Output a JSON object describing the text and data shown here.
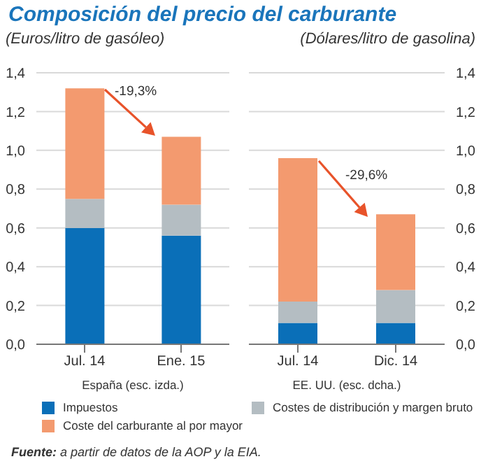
{
  "chart_data": [
    {
      "type": "bar",
      "title": "Composición del precio del carburante",
      "ylabel": "(Euros/litro de gasóleo)",
      "xlabel": "España (esc. izda.)",
      "categories": [
        "Jul. 14",
        "Ene. 15"
      ],
      "stacked": true,
      "series": [
        {
          "name": "Impuestos",
          "color": "#0a6fb8",
          "values": [
            0.6,
            0.56
          ]
        },
        {
          "name": "Costes de distribución y margen bruto",
          "color": "#b4bdc2",
          "values": [
            0.15,
            0.16
          ]
        },
        {
          "name": "Coste del carburante al por mayor",
          "color": "#f39a6f",
          "values": [
            0.57,
            0.35
          ]
        }
      ],
      "ylim": [
        0,
        1.4
      ],
      "yticks": [
        {
          "value": 0,
          "label": "0,0"
        },
        {
          "value": 0.2,
          "label": "0,2"
        },
        {
          "value": 0.4,
          "label": "0,4"
        },
        {
          "value": 0.6,
          "label": "0,6"
        },
        {
          "value": 0.8,
          "label": "0,8"
        },
        {
          "value": 1.0,
          "label": "1,0"
        },
        {
          "value": 1.2,
          "label": "1,2"
        },
        {
          "value": 1.4,
          "label": "1,4"
        }
      ],
      "grid": "y",
      "legend": "bottom",
      "annotations": [
        "-19,3%",
        "Fuente: a partir de datos de la AOP y la EIA."
      ]
    },
    {
      "type": "bar",
      "ylabel": "(Dólares/litro de gasolina)",
      "xlabel": "EE. UU. (esc. dcha.)",
      "categories": [
        "Jul. 14",
        "Dic. 14"
      ],
      "stacked": true,
      "series": [
        {
          "color": "#0a6fb8",
          "values": [
            0.11,
            0.11
          ]
        },
        {
          "color": "#b4bdc2",
          "values": [
            0.11,
            0.17
          ]
        },
        {
          "color": "#f39a6f",
          "values": [
            0.74,
            0.39
          ]
        }
      ],
      "ylim": [
        0,
        1.4
      ],
      "yticks": [
        {
          "value": 0,
          "label": "0,0"
        },
        {
          "value": 0.2,
          "label": "0,2"
        },
        {
          "value": 0.4,
          "label": "0,4"
        },
        {
          "value": 0.6,
          "label": "0,6"
        },
        {
          "value": 0.8,
          "label": "0,8"
        },
        {
          "value": 1.0,
          "label": "1,0"
        },
        {
          "value": 1.2,
          "label": "1,2"
        },
        {
          "value": 1.4,
          "label": "1,4"
        }
      ],
      "grid": "y",
      "annotations": [
        "-29,6%"
      ]
    }
  ]
}
